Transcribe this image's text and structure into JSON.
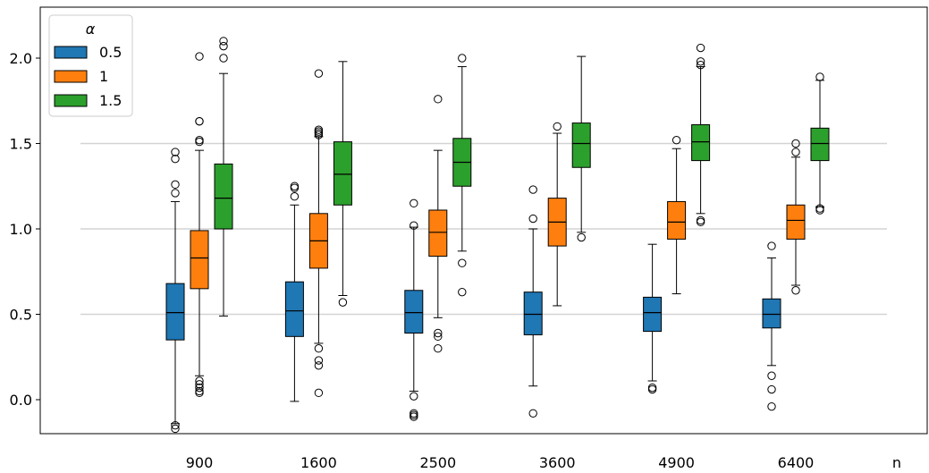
{
  "chart_data": {
    "type": "box",
    "title": "",
    "xlabel": "n",
    "ylabel": "",
    "ylim": [
      -0.2,
      2.3
    ],
    "yticks": [
      "0.0",
      "0.5",
      "1.0",
      "1.5",
      "2.0"
    ],
    "reference_lines": [
      0.5,
      1.0,
      1.5
    ],
    "legend": {
      "title": "α",
      "position": "top-left"
    },
    "categories": [
      "900",
      "1600",
      "2500",
      "3600",
      "4900",
      "6400"
    ],
    "series": [
      {
        "name": "0.5",
        "color": "#1f77b4",
        "boxes": [
          {
            "whislo": -0.14,
            "q1": 0.35,
            "med": 0.51,
            "q3": 0.68,
            "whishi": 1.16,
            "fliers": [
              1.45,
              1.41,
              1.26,
              1.21,
              -0.15,
              -0.17
            ]
          },
          {
            "whislo": -0.01,
            "q1": 0.37,
            "med": 0.52,
            "q3": 0.69,
            "whishi": 1.14,
            "fliers": [
              1.25,
              1.24,
              1.19
            ]
          },
          {
            "whislo": 0.05,
            "q1": 0.39,
            "med": 0.51,
            "q3": 0.64,
            "whishi": 1.01,
            "fliers": [
              1.15,
              1.02,
              0.02,
              -0.08,
              -0.09,
              -0.1
            ]
          },
          {
            "whislo": 0.08,
            "q1": 0.38,
            "med": 0.5,
            "q3": 0.63,
            "whishi": 1.0,
            "fliers": [
              1.23,
              1.06,
              -0.08
            ]
          },
          {
            "whislo": 0.11,
            "q1": 0.4,
            "med": 0.51,
            "q3": 0.6,
            "whishi": 0.91,
            "fliers": [
              0.07,
              0.06
            ]
          },
          {
            "whislo": 0.2,
            "q1": 0.42,
            "med": 0.5,
            "q3": 0.59,
            "whishi": 0.83,
            "fliers": [
              0.9,
              0.14,
              0.06,
              -0.04
            ]
          }
        ]
      },
      {
        "name": "1",
        "color": "#ff7f0e",
        "boxes": [
          {
            "whislo": 0.14,
            "q1": 0.65,
            "med": 0.83,
            "q3": 0.99,
            "whishi": 1.46,
            "fliers": [
              2.01,
              1.63,
              1.63,
              1.52,
              1.51,
              0.11,
              0.09,
              0.07,
              0.05,
              0.04
            ]
          },
          {
            "whislo": 0.33,
            "q1": 0.77,
            "med": 0.93,
            "q3": 1.09,
            "whishi": 1.54,
            "fliers": [
              1.91,
              1.58,
              1.57,
              1.56,
              1.55,
              0.3,
              0.23,
              0.2,
              0.04
            ]
          },
          {
            "whislo": 0.48,
            "q1": 0.84,
            "med": 0.98,
            "q3": 1.11,
            "whishi": 1.46,
            "fliers": [
              1.76,
              0.39,
              0.37,
              0.3
            ]
          },
          {
            "whislo": 0.55,
            "q1": 0.9,
            "med": 1.04,
            "q3": 1.18,
            "whishi": 1.56,
            "fliers": [
              1.6
            ]
          },
          {
            "whislo": 0.62,
            "q1": 0.94,
            "med": 1.04,
            "q3": 1.16,
            "whishi": 1.47,
            "fliers": [
              1.52
            ]
          },
          {
            "whislo": 0.67,
            "q1": 0.94,
            "med": 1.05,
            "q3": 1.14,
            "whishi": 1.42,
            "fliers": [
              1.5,
              1.45,
              0.64
            ]
          }
        ]
      },
      {
        "name": "1.5",
        "color": "#2ca02c",
        "boxes": [
          {
            "whislo": 0.49,
            "q1": 1.0,
            "med": 1.18,
            "q3": 1.38,
            "whishi": 1.91,
            "fliers": [
              2.1,
              2.07,
              2.0
            ]
          },
          {
            "whislo": 0.61,
            "q1": 1.14,
            "med": 1.32,
            "q3": 1.51,
            "whishi": 1.98,
            "fliers": [
              0.57
            ]
          },
          {
            "whislo": 0.87,
            "q1": 1.25,
            "med": 1.39,
            "q3": 1.53,
            "whishi": 1.95,
            "fliers": [
              2.0,
              0.8,
              0.63
            ]
          },
          {
            "whislo": 0.98,
            "q1": 1.36,
            "med": 1.5,
            "q3": 1.62,
            "whishi": 2.01,
            "fliers": [
              0.95
            ]
          },
          {
            "whislo": 1.09,
            "q1": 1.4,
            "med": 1.51,
            "q3": 1.61,
            "whishi": 1.95,
            "fliers": [
              2.06,
              1.98,
              1.96,
              1.05,
              1.04
            ]
          },
          {
            "whislo": 1.13,
            "q1": 1.4,
            "med": 1.5,
            "q3": 1.59,
            "whishi": 1.87,
            "fliers": [
              1.89,
              1.12,
              1.11
            ]
          }
        ]
      }
    ]
  }
}
